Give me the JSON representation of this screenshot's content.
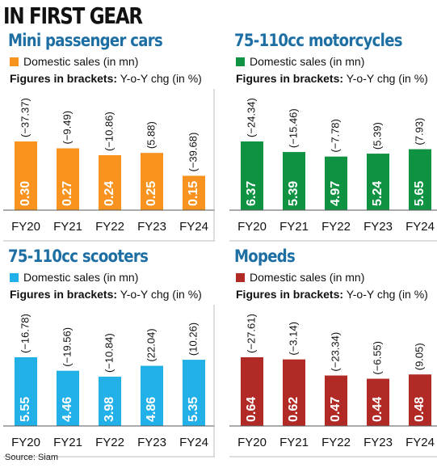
{
  "page": {
    "title": "IN FIRST GEAR",
    "source": "Source: Siam"
  },
  "colors": {
    "title_blue": "#1d6fa3",
    "mini_cars": "#f7931e",
    "motorcycles": "#0f9343",
    "scooters": "#21b1e8",
    "mopeds": "#b22a26",
    "axis": "#bbbbbb"
  },
  "chart_data": [
    {
      "type": "bar",
      "title": "Mini passenger cars",
      "legend": "Domestic sales (in mn)",
      "note_bold": "Figures in brackets:",
      "note_text": "Y-o-Y chg (in %)",
      "color": "#f7931e",
      "categories": [
        "FY20",
        "FY21",
        "FY22",
        "FY23",
        "FY24"
      ],
      "values": [
        0.3,
        0.27,
        0.24,
        0.25,
        0.15
      ],
      "value_labels": [
        "0.30",
        "0.27",
        "0.24",
        "0.25",
        "0.15"
      ],
      "yoy_labels": [
        "(−37.37)",
        "(−9.49)",
        "(−10.86)",
        "(5.88)",
        "(−39.68)"
      ],
      "ylim": [
        0,
        0.3
      ],
      "grid": false
    },
    {
      "type": "bar",
      "title": "75-110cc motorcycles",
      "legend": "Domestic sales (in mn)",
      "note_bold": "Figures in brackets:",
      "note_text": "Y-o-Y chg (in %)",
      "color": "#0f9343",
      "categories": [
        "FY20",
        "FY21",
        "FY22",
        "FY23",
        "FY24"
      ],
      "values": [
        6.37,
        5.39,
        4.97,
        5.24,
        5.65
      ],
      "value_labels": [
        "6.37",
        "5.39",
        "4.97",
        "5.24",
        "5.65"
      ],
      "yoy_labels": [
        "(−24.34)",
        "(−15.46)",
        "(−7.78)",
        "(5.39)",
        "(7.93)"
      ],
      "ylim": [
        0,
        6.37
      ],
      "grid": false
    },
    {
      "type": "bar",
      "title": "75-110cc scooters",
      "legend": "Domestic sales (in mn)",
      "note_bold": "Figures in brackets:",
      "note_text": "Y-o-Y chg (in %)",
      "color": "#21b1e8",
      "categories": [
        "FY20",
        "FY21",
        "FY22",
        "FY23",
        "FY24"
      ],
      "values": [
        5.55,
        4.46,
        3.98,
        4.86,
        5.35
      ],
      "value_labels": [
        "5.55",
        "4.46",
        "3.98",
        "4.86",
        "5.35"
      ],
      "yoy_labels": [
        "(−16.78)",
        "(−19.56)",
        "(−10.84)",
        "(22.04)",
        "(10.26)"
      ],
      "ylim": [
        0,
        5.55
      ],
      "grid": false
    },
    {
      "type": "bar",
      "title": "Mopeds",
      "legend": "Domestic sales (in mn)",
      "note_bold": "Figures in brackets:",
      "note_text": "Y-o-Y chg (in %)",
      "color": "#b22a26",
      "categories": [
        "FY20",
        "FY21",
        "FY22",
        "FY23",
        "FY24"
      ],
      "values": [
        0.64,
        0.62,
        0.47,
        0.44,
        0.48
      ],
      "value_labels": [
        "0.64",
        "0.62",
        "0.47",
        "0.44",
        "0.48"
      ],
      "yoy_labels": [
        "(−27.61)",
        "(−3.14)",
        "(−23.34)",
        "(−6.55)",
        "(9.05)"
      ],
      "ylim": [
        0,
        0.64
      ],
      "grid": false
    }
  ]
}
